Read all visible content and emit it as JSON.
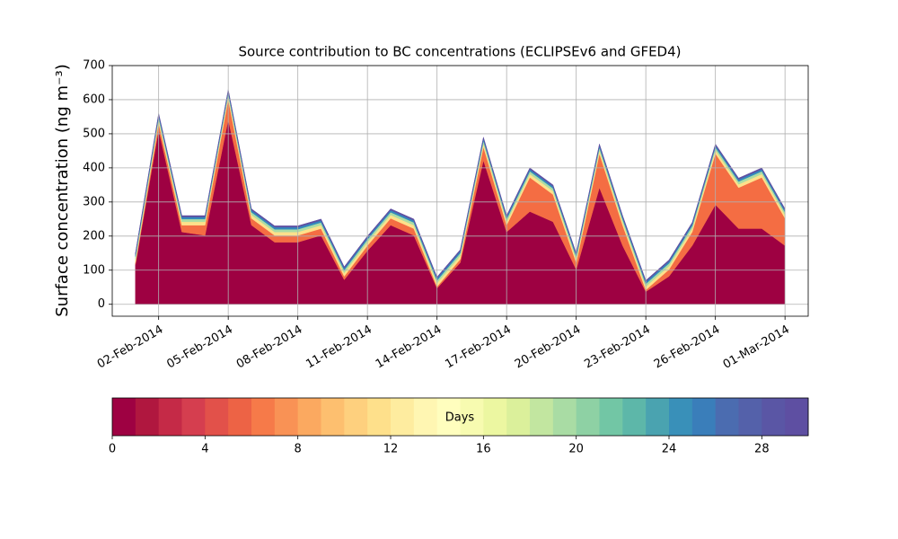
{
  "chart_data": {
    "type": "stacked_area",
    "title": "Source contribution to BC concentrations (ECLIPSEv6 and GFED4)",
    "y_label": "Surface concentration (ng m⁻³)",
    "x": [
      "01-Feb-2014",
      "02-Feb-2014",
      "03-Feb-2014",
      "04-Feb-2014",
      "05-Feb-2014",
      "06-Feb-2014",
      "07-Feb-2014",
      "08-Feb-2014",
      "09-Feb-2014",
      "10-Feb-2014",
      "11-Feb-2014",
      "12-Feb-2014",
      "13-Feb-2014",
      "14-Feb-2014",
      "15-Feb-2014",
      "16-Feb-2014",
      "17-Feb-2014",
      "18-Feb-2014",
      "19-Feb-2014",
      "20-Feb-2014",
      "21-Feb-2014",
      "22-Feb-2014",
      "23-Feb-2014",
      "24-Feb-2014",
      "25-Feb-2014",
      "26-Feb-2014",
      "27-Feb-2014",
      "28-Feb-2014",
      "01-Mar-2014"
    ],
    "xlim": [
      "31-Jan-2014",
      "02-Mar-2014"
    ],
    "xticks": [
      "02-Feb-2014",
      "05-Feb-2014",
      "08-Feb-2014",
      "11-Feb-2014",
      "14-Feb-2014",
      "17-Feb-2014",
      "20-Feb-2014",
      "23-Feb-2014",
      "26-Feb-2014",
      "01-Mar-2014"
    ],
    "ylim": [
      -35,
      700
    ],
    "yticks": [
      0,
      100,
      200,
      300,
      400,
      500,
      600,
      700
    ],
    "grid": true,
    "series": [
      {
        "color": "#9e0142",
        "values": [
          117,
          512,
          212,
          202,
          542,
          232,
          182,
          182,
          202,
          72,
          157,
          232,
          202,
          47,
          122,
          422,
          212,
          272,
          242,
          102,
          342,
          172,
          37,
          82,
          172,
          292,
          222,
          222,
          172
        ]
      },
      {
        "color": "#f46d43",
        "values": [
          5,
          20,
          20,
          30,
          60,
          20,
          20,
          20,
          20,
          10,
          15,
          20,
          20,
          5,
          10,
          40,
          20,
          100,
          80,
          20,
          100,
          60,
          5,
          20,
          40,
          150,
          120,
          150,
          80
        ]
      },
      {
        "color": "#fee08b",
        "values": [
          10,
          10,
          10,
          10,
          10,
          10,
          10,
          10,
          10,
          10,
          10,
          10,
          10,
          10,
          10,
          10,
          10,
          10,
          10,
          10,
          10,
          10,
          10,
          10,
          10,
          10,
          10,
          10,
          10
        ]
      },
      {
        "color": "#abdda4",
        "values": [
          8,
          8,
          8,
          8,
          8,
          8,
          8,
          8,
          8,
          8,
          8,
          8,
          8,
          8,
          8,
          8,
          8,
          8,
          8,
          8,
          8,
          8,
          8,
          8,
          8,
          8,
          8,
          8,
          8
        ]
      },
      {
        "color": "#3288bd",
        "values": [
          6,
          6,
          6,
          6,
          6,
          6,
          6,
          6,
          6,
          6,
          6,
          6,
          6,
          6,
          6,
          6,
          6,
          6,
          6,
          6,
          6,
          6,
          6,
          6,
          6,
          6,
          6,
          6,
          6
        ]
      },
      {
        "color": "#5e4fa2",
        "values": [
          4,
          4,
          4,
          4,
          4,
          4,
          4,
          4,
          4,
          4,
          4,
          4,
          4,
          4,
          4,
          4,
          4,
          4,
          4,
          4,
          4,
          4,
          4,
          4,
          4,
          4,
          4,
          4,
          4
        ]
      }
    ],
    "colorbar": {
      "label": "Days",
      "lim": [
        0,
        30
      ],
      "ticks": [
        0,
        4,
        8,
        12,
        16,
        20,
        24,
        28
      ],
      "colors": [
        "#9e0142",
        "#b0173f",
        "#c52a47",
        "#d53e4f",
        "#e2514a",
        "#ed6345",
        "#f67a49",
        "#f99255",
        "#fba960",
        "#fdbf6f",
        "#fed07e",
        "#fee08b",
        "#feec9f",
        "#fff6b2",
        "#fffebe",
        "#f7fbb0",
        "#ecf7a1",
        "#dbf09b",
        "#c2e6a0",
        "#a9dca4",
        "#8ed1a4",
        "#72c6a5",
        "#5db7a9",
        "#4aa3b0",
        "#3990b9",
        "#3a7eba",
        "#4b6cb0",
        "#5461aa",
        "#5a56a5",
        "#5e4fa2"
      ]
    }
  }
}
